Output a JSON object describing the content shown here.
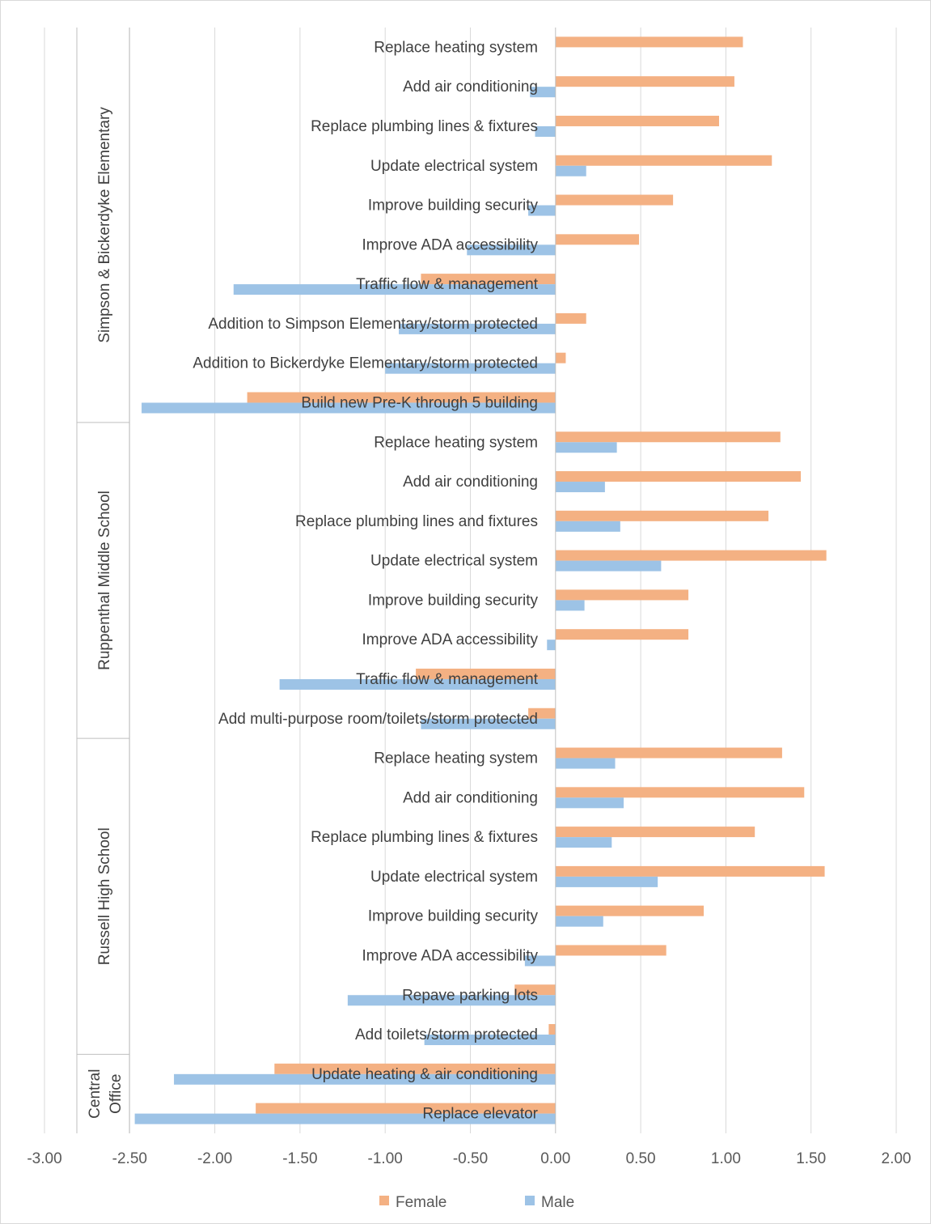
{
  "chart_data": {
    "type": "bar",
    "orientation": "horizontal",
    "title": "",
    "xlabel": "",
    "ylabel": "",
    "xlim": [
      -3.0,
      2.0
    ],
    "x_ticks": [
      -3.0,
      -2.5,
      -2.0,
      -1.5,
      -1.0,
      -0.5,
      0.0,
      0.5,
      1.0,
      1.5,
      2.0
    ],
    "x_tick_labels": [
      "-3.00",
      "-2.50",
      "-2.00",
      "-1.50",
      "-1.00",
      "-0.50",
      "0.00",
      "0.50",
      "1.00",
      "1.50",
      "2.00"
    ],
    "grid": true,
    "legend_position": "bottom",
    "colors": {
      "Female": "#f4b183",
      "Male": "#9dc3e6"
    },
    "groups": [
      {
        "label": "Simpson & Bickerdyke Elementary",
        "categories": [
          "Replace heating system",
          "Add air conditioning",
          "Replace plumbing lines & fixtures",
          "Update electrical system",
          "Improve building security",
          "Improve ADA accessibility",
          "Traffic flow & management",
          "Addition to Simpson Elementary/storm protected",
          "Addition to Bickerdyke Elementary/storm protected",
          "Build new Pre-K through 5 building"
        ],
        "series": [
          {
            "name": "Female",
            "values": [
              1.1,
              1.05,
              0.96,
              1.27,
              0.69,
              0.49,
              -0.79,
              0.18,
              0.06,
              -1.81
            ]
          },
          {
            "name": "Male",
            "values": [
              0.0,
              -0.15,
              -0.12,
              0.18,
              -0.16,
              -0.52,
              -1.89,
              -0.92,
              -1.0,
              -2.43
            ]
          }
        ]
      },
      {
        "label": "Ruppenthal Middle School",
        "categories": [
          "Replace heating system",
          "Add air conditioning",
          "Replace plumbing lines and fixtures",
          "Update electrical system",
          "Improve building security",
          "Improve ADA accessibility",
          "Traffic flow & management",
          "Add multi-purpose room/toilets/storm protected"
        ],
        "series": [
          {
            "name": "Female",
            "values": [
              1.32,
              1.44,
              1.25,
              1.59,
              0.78,
              0.78,
              -0.82,
              -0.16
            ]
          },
          {
            "name": "Male",
            "values": [
              0.36,
              0.29,
              0.38,
              0.62,
              0.17,
              -0.05,
              -1.62,
              -0.79
            ]
          }
        ]
      },
      {
        "label": "Russell High School",
        "categories": [
          "Replace heating system",
          "Add air conditioning",
          "Replace plumbing lines & fixtures",
          "Update electrical system",
          "Improve building security",
          "Improve ADA accessibility",
          "Repave parking lots",
          "Add toilets/storm protected"
        ],
        "series": [
          {
            "name": "Female",
            "values": [
              1.33,
              1.46,
              1.17,
              1.58,
              0.87,
              0.65,
              -0.24,
              -0.04
            ]
          },
          {
            "name": "Male",
            "values": [
              0.35,
              0.4,
              0.33,
              0.6,
              0.28,
              -0.18,
              -1.22,
              -0.77
            ]
          }
        ]
      },
      {
        "label": "Central Office",
        "categories": [
          "Update heating & air conditioning",
          "Replace elevator"
        ],
        "series": [
          {
            "name": "Female",
            "values": [
              -1.65,
              -1.76
            ]
          },
          {
            "name": "Male",
            "values": [
              -2.24,
              -2.47
            ]
          }
        ]
      }
    ]
  },
  "legend": {
    "female_label": "Female",
    "male_label": "Male"
  }
}
